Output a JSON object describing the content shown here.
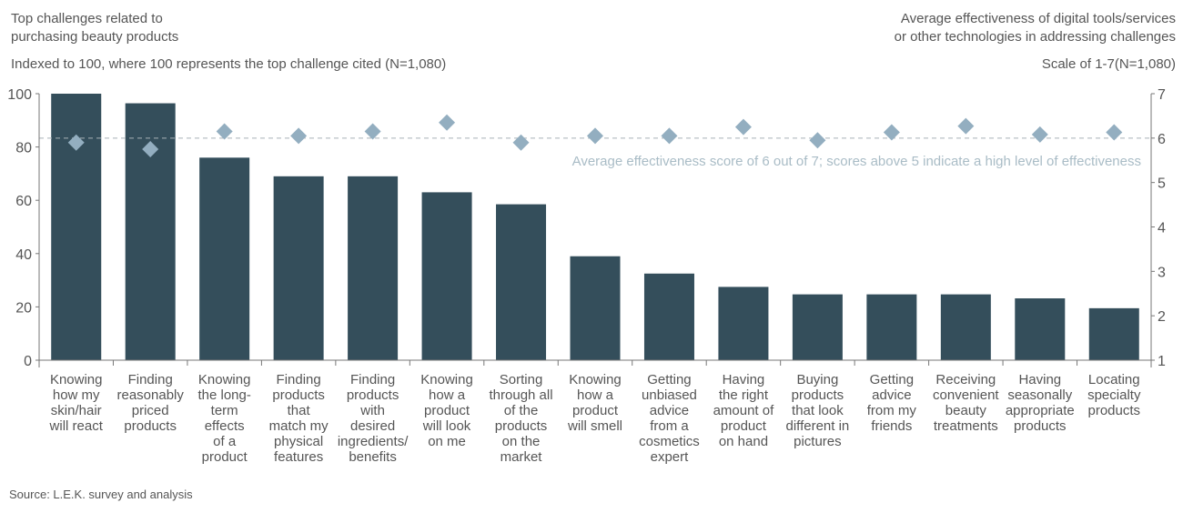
{
  "header": {
    "left_title_1": "Top challenges related to",
    "left_title_2": "purchasing beauty products",
    "left_subtitle": "Indexed to 100, where 100 represents the top challenge cited (N=1,080)",
    "right_title_1": "Average effectiveness of digital tools/services",
    "right_title_2": "or other technologies in addressing challenges",
    "right_subtitle": "Scale of 1-7(N=1,080)"
  },
  "source": "Source: L.E.K. survey and analysis",
  "chart_data": {
    "type": "bar",
    "categories": [
      [
        "Knowing",
        "how my",
        "skin/hair",
        "will react"
      ],
      [
        "Finding",
        "reasonably",
        "priced",
        "products"
      ],
      [
        "Knowing",
        "the long-",
        "term",
        "effects",
        "of a",
        "product"
      ],
      [
        "Finding",
        "products",
        "that",
        "match my",
        "physical",
        "features"
      ],
      [
        "Finding",
        "products",
        "with",
        "desired",
        "ingredients/",
        "benefits"
      ],
      [
        "Knowing",
        "how a",
        "product",
        "will look",
        "on me"
      ],
      [
        "Sorting",
        "through all",
        "of the",
        "products",
        "on the",
        "market"
      ],
      [
        "Knowing",
        "how a",
        "product",
        "will smell"
      ],
      [
        "Getting",
        "unbiased",
        "advice",
        "from a",
        "cosmetics",
        "expert"
      ],
      [
        "Having",
        "the right",
        "amount of",
        "product",
        "on hand"
      ],
      [
        "Buying",
        "products",
        "that look",
        "different in",
        "pictures"
      ],
      [
        "Getting",
        "advice",
        "from my",
        "friends"
      ],
      [
        "Receiving",
        "convenient",
        "beauty",
        "treatments"
      ],
      [
        "Having",
        "seasonally",
        "appropriate",
        "products"
      ],
      [
        "Locating",
        "specialty",
        "products"
      ]
    ],
    "series": [
      {
        "type": "bar",
        "axis": "left",
        "values": [
          100,
          96.4,
          76,
          69,
          69,
          63,
          58.5,
          39,
          32.5,
          27.5,
          24.7,
          24.7,
          24.7,
          23.2,
          19.5
        ]
      },
      {
        "type": "scatter",
        "marker": "diamond",
        "axis": "right",
        "values": [
          5.9,
          5.75,
          6.15,
          6.05,
          6.15,
          6.35,
          5.9,
          6.05,
          6.05,
          6.25,
          5.95,
          6.13,
          6.27,
          6.08,
          6.13
        ]
      }
    ],
    "left_axis": {
      "ylim": [
        0,
        100
      ],
      "ticks": [
        0,
        20,
        40,
        60,
        80,
        100
      ]
    },
    "right_axis": {
      "ylim": [
        1,
        7
      ],
      "ticks": [
        1,
        2,
        3,
        4,
        5,
        6,
        7
      ]
    },
    "reference_line": {
      "value": 6,
      "axis": "right",
      "style": "dashed",
      "label": "Average effectiveness score of 6 out of 7; scores above 5 indicate a high level of effectiveness"
    },
    "colors": {
      "bar": "#344e5b",
      "diamond": "#93aec0",
      "reference": "#a8b1b6",
      "annotation": "#a9bcc6",
      "axis": "#777777",
      "text": "#555555"
    },
    "grid": false,
    "legend": "none"
  }
}
